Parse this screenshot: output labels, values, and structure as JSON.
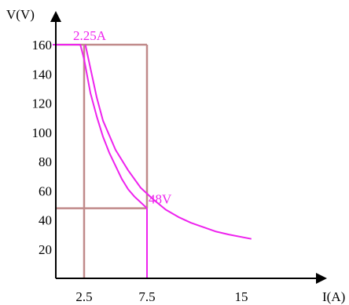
{
  "chart_data": {
    "type": "line",
    "xlabel": "I(A)",
    "ylabel": "V(V)",
    "y_ticks": [
      20,
      40,
      60,
      80,
      100,
      120,
      140,
      160
    ],
    "x_ticks": [
      2.5,
      7.5,
      15
    ],
    "grid": false,
    "series": [
      {
        "x": [
          0,
          2.2,
          2.5,
          3,
          3.5,
          4,
          4.5,
          5,
          5.5,
          6,
          6.5,
          7,
          7.5
        ],
        "y": [
          160,
          160,
          150,
          127,
          111,
          97,
          86,
          77,
          68,
          61,
          56,
          52,
          48
        ]
      },
      {
        "x": [
          2.6,
          3,
          3.5,
          4,
          5,
          6,
          7,
          8,
          9,
          10,
          11,
          12,
          13,
          14,
          15.8
        ],
        "y": [
          160,
          144,
          124,
          108,
          88,
          74,
          62,
          54,
          47,
          42,
          38,
          35,
          32,
          30,
          27
        ]
      }
    ],
    "reference_lines": {
      "horizontal": [
        160,
        48
      ],
      "vertical": [
        2.5,
        7.5
      ]
    },
    "annotations": [
      {
        "text": "2.25A",
        "x": 2.25,
        "y": 160
      },
      {
        "text": "48V",
        "x": 7.5,
        "y": 48
      }
    ],
    "colors": {
      "curve": "#ee22ee",
      "reference": "#c08a8a",
      "axis": "#000000"
    }
  }
}
